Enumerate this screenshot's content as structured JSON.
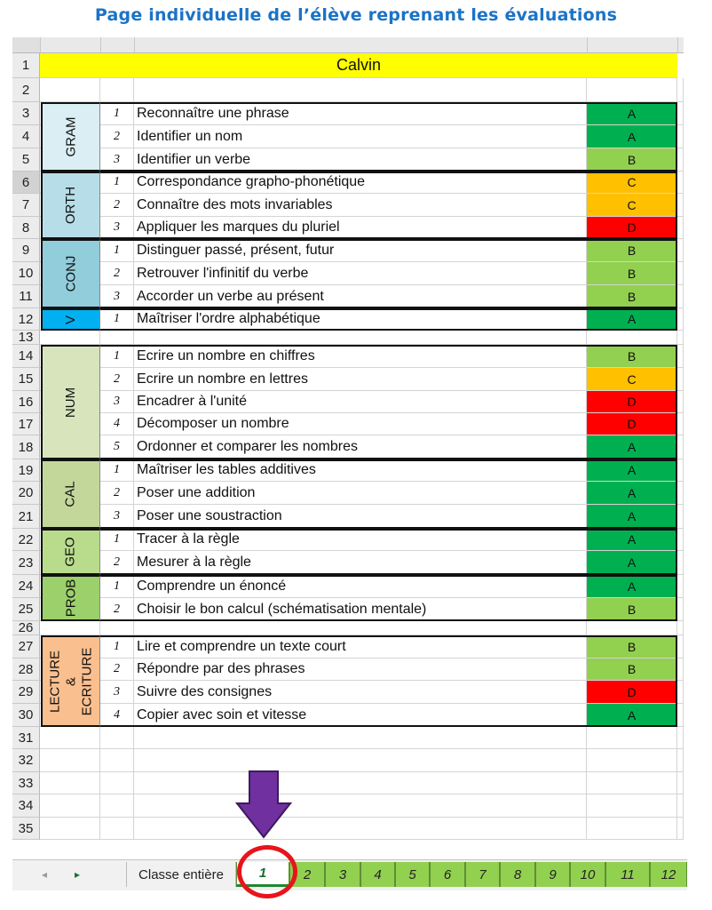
{
  "title": "Page individuelle de l’élève reprenant les évaluations",
  "student_name": "Calvin",
  "colors": {
    "A": "#00b050",
    "B": "#92d050",
    "C": "#ffc000",
    "D": "#ff0000"
  },
  "domains": [
    {
      "label": "GRAM",
      "color": "#daeef3",
      "start": 3,
      "end": 5
    },
    {
      "label": "ORTH",
      "color": "#b7dee8",
      "start": 6,
      "end": 8
    },
    {
      "label": "CONJ",
      "color": "#92cddc",
      "start": 9,
      "end": 11
    },
    {
      "label": "V",
      "color": "#00b0f0",
      "start": 12,
      "end": 12
    },
    {
      "label": "NUM",
      "color": "#d8e4bc",
      "start": 14,
      "end": 18
    },
    {
      "label": "CAL",
      "color": "#c4d79b",
      "start": 19,
      "end": 21
    },
    {
      "label": "GEO",
      "color": "#b8dc8c",
      "start": 22,
      "end": 23
    },
    {
      "label": "PROB",
      "color": "#9bd06a",
      "start": 24,
      "end": 25
    },
    {
      "label": "LECTURE & ECRITURE",
      "color": "#fabf8f",
      "start": 27,
      "end": 30
    }
  ],
  "rows": [
    {
      "n": "1",
      "type": "name"
    },
    {
      "n": "2",
      "type": "blank"
    },
    {
      "n": "3",
      "num": "1",
      "label": "Reconnaître une phrase",
      "grade": "A"
    },
    {
      "n": "4",
      "num": "2",
      "label": "Identifier un nom",
      "grade": "A"
    },
    {
      "n": "5",
      "num": "3",
      "label": "Identifier un verbe",
      "grade": "B"
    },
    {
      "n": "6",
      "num": "1",
      "label": "Correspondance grapho-phonétique",
      "grade": "C",
      "selected": true
    },
    {
      "n": "7",
      "num": "2",
      "label": "Connaître des mots invariables",
      "grade": "C"
    },
    {
      "n": "8",
      "num": "3",
      "label": "Appliquer les marques du pluriel",
      "grade": "D"
    },
    {
      "n": "9",
      "num": "1",
      "label": "Distinguer passé, présent, futur",
      "grade": "B"
    },
    {
      "n": "10",
      "num": "2",
      "label": "Retrouver l'infinitif du verbe",
      "grade": "B"
    },
    {
      "n": "11",
      "num": "3",
      "label": "Accorder un verbe au présent",
      "grade": "B"
    },
    {
      "n": "12",
      "num": "1",
      "label": "Maîtriser l'ordre alphabétique",
      "grade": "A"
    },
    {
      "n": "13",
      "type": "blank"
    },
    {
      "n": "14",
      "num": "1",
      "label": "Ecrire un nombre en chiffres",
      "grade": "B"
    },
    {
      "n": "15",
      "num": "2",
      "label": "Ecrire un nombre en lettres",
      "grade": "C"
    },
    {
      "n": "16",
      "num": "3",
      "label": "Encadrer à l'unité",
      "grade": "D"
    },
    {
      "n": "17",
      "num": "4",
      "label": "Décomposer un nombre",
      "grade": "D"
    },
    {
      "n": "18",
      "num": "5",
      "label": "Ordonner et comparer les nombres",
      "grade": "A"
    },
    {
      "n": "19",
      "num": "1",
      "label": "Maîtriser les tables additives",
      "grade": "A"
    },
    {
      "n": "20",
      "num": "2",
      "label": "Poser une addition",
      "grade": "A"
    },
    {
      "n": "21",
      "num": "3",
      "label": "Poser une soustraction",
      "grade": "A"
    },
    {
      "n": "22",
      "num": "1",
      "label": "Tracer à la règle",
      "grade": "A"
    },
    {
      "n": "23",
      "num": "2",
      "label": "Mesurer à la règle",
      "grade": "A"
    },
    {
      "n": "24",
      "num": "1",
      "label": "Comprendre un énoncé",
      "grade": "A"
    },
    {
      "n": "25",
      "num": "2",
      "label": "Choisir le bon calcul (schématisation mentale)",
      "grade": "B"
    },
    {
      "n": "26",
      "type": "blank"
    },
    {
      "n": "27",
      "num": "1",
      "label": "Lire et comprendre un texte court",
      "grade": "B"
    },
    {
      "n": "28",
      "num": "2",
      "label": "Répondre par des phrases",
      "grade": "B"
    },
    {
      "n": "29",
      "num": "3",
      "label": "Suivre des consignes",
      "grade": "D"
    },
    {
      "n": "30",
      "num": "4",
      "label": "Copier avec soin et vitesse",
      "grade": "A"
    },
    {
      "n": "31",
      "type": "blank"
    },
    {
      "n": "32",
      "type": "blank"
    },
    {
      "n": "33",
      "type": "blank"
    },
    {
      "n": "34",
      "type": "blank"
    },
    {
      "n": "35",
      "type": "blank"
    }
  ],
  "tabs": {
    "prev_icon": "◂",
    "next_icon": "▸",
    "class_label": "Classe entière",
    "active": "1",
    "items": [
      "1",
      "2",
      "3",
      "4",
      "5",
      "6",
      "7",
      "8",
      "9",
      "10",
      "11",
      "12"
    ]
  }
}
